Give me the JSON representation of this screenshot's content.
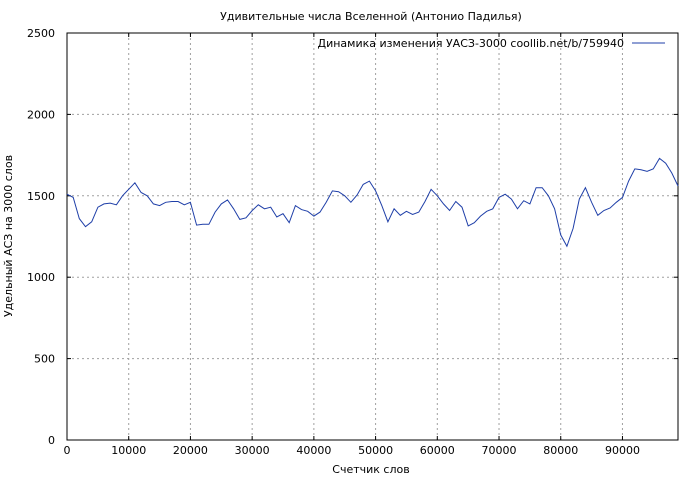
{
  "chart_data": {
    "type": "line",
    "title": "Удивительные числа Вселенной (Антонио Падилья)",
    "xlabel": "Счетчик слов",
    "ylabel": "Удельный АСЗ на 3000 слов",
    "xlim": [
      0,
      99000
    ],
    "ylim": [
      0,
      2500
    ],
    "xticks": [
      0,
      10000,
      20000,
      30000,
      40000,
      50000,
      60000,
      70000,
      80000,
      90000
    ],
    "yticks": [
      0,
      500,
      1000,
      1500,
      2000,
      2500
    ],
    "grid": true,
    "legend_position": "top-right",
    "series": [
      {
        "name": "Динамика изменения УАСЗ-3000 coollib.net/b/759940",
        "color": "#1f3fa8",
        "x": [
          0,
          1000,
          2000,
          3000,
          4000,
          5000,
          6000,
          7000,
          8000,
          9000,
          10000,
          11000,
          12000,
          13000,
          14000,
          15000,
          16000,
          17000,
          18000,
          19000,
          20000,
          21000,
          22000,
          23000,
          24000,
          25000,
          26000,
          27000,
          28000,
          29000,
          30000,
          31000,
          32000,
          33000,
          34000,
          35000,
          36000,
          37000,
          38000,
          39000,
          40000,
          41000,
          42000,
          43000,
          44000,
          45000,
          46000,
          47000,
          48000,
          49000,
          50000,
          51000,
          52000,
          53000,
          54000,
          55000,
          56000,
          57000,
          58000,
          59000,
          60000,
          61000,
          62000,
          63000,
          64000,
          65000,
          66000,
          67000,
          68000,
          69000,
          70000,
          71000,
          72000,
          73000,
          74000,
          75000,
          76000,
          77000,
          78000,
          79000,
          80000,
          81000,
          82000,
          83000,
          84000,
          85000,
          86000,
          87000,
          88000,
          89000,
          90000,
          91000,
          92000,
          93000,
          94000,
          95000,
          96000,
          97000,
          98000,
          99000
        ],
        "y": [
          1510,
          1490,
          1360,
          1310,
          1340,
          1430,
          1450,
          1455,
          1445,
          1500,
          1540,
          1580,
          1520,
          1500,
          1450,
          1440,
          1460,
          1465,
          1465,
          1445,
          1460,
          1320,
          1325,
          1325,
          1400,
          1450,
          1475,
          1420,
          1355,
          1365,
          1410,
          1445,
          1420,
          1430,
          1370,
          1390,
          1335,
          1440,
          1415,
          1405,
          1375,
          1400,
          1460,
          1530,
          1525,
          1500,
          1460,
          1505,
          1570,
          1590,
          1530,
          1440,
          1340,
          1420,
          1380,
          1405,
          1385,
          1400,
          1465,
          1540,
          1500,
          1450,
          1410,
          1465,
          1430,
          1315,
          1335,
          1375,
          1405,
          1420,
          1490,
          1510,
          1480,
          1420,
          1470,
          1450,
          1550,
          1550,
          1500,
          1420,
          1260,
          1190,
          1300,
          1480,
          1550,
          1460,
          1380,
          1410,
          1425,
          1460,
          1490,
          1590,
          1665,
          1660,
          1650,
          1665,
          1730,
          1700,
          1640,
          1560
        ]
      }
    ]
  }
}
